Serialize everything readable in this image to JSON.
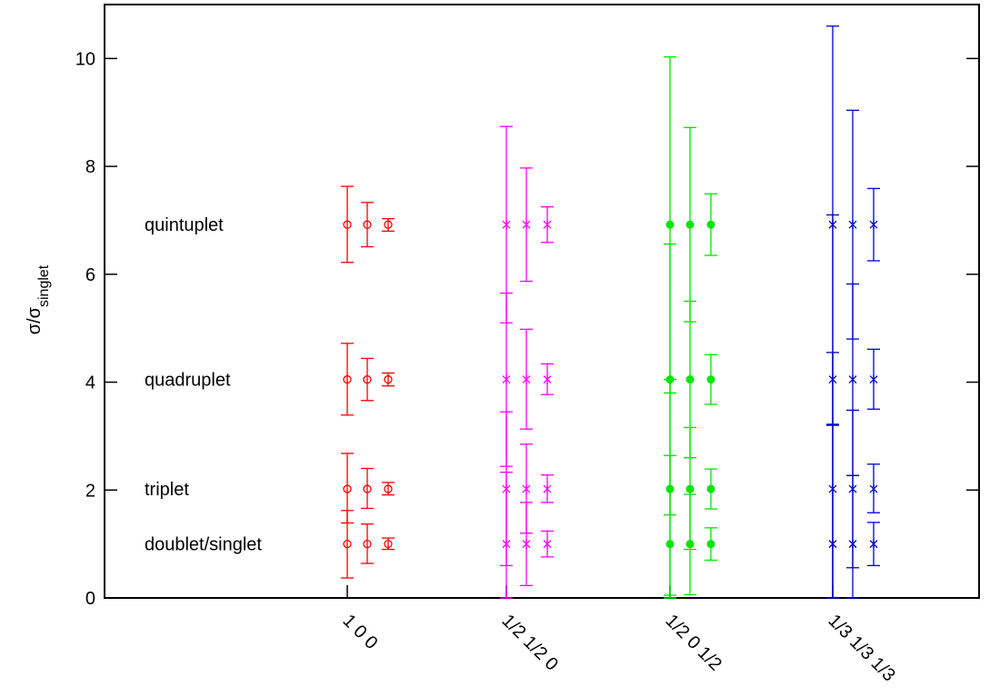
{
  "chart_data": {
    "type": "scatter",
    "title": "",
    "xlabel": "",
    "ylabel": "σ/σ",
    "ylabel_subscript": "singlet",
    "ylim": [
      0,
      11
    ],
    "y_ticks": [
      0,
      2,
      4,
      6,
      8,
      10
    ],
    "grid": false,
    "categories": [
      "1 0 0",
      "1/2 1/2 0",
      "1/2 0 1/2",
      "1/3 1/3 1/3"
    ],
    "row_labels": [
      {
        "text": "quintuplet",
        "y": 6.92
      },
      {
        "text": "quadruplet",
        "y": 4.05
      },
      {
        "text": "triplet",
        "y": 2.02
      },
      {
        "text": "doublet/singlet",
        "y": 1.0
      }
    ],
    "series": [
      {
        "category": "1 0 0",
        "color": "#ff0000",
        "marker": "circle",
        "columns": [
          [
            {
              "y": 6.92,
              "lo": 6.22,
              "hi": 7.63
            },
            {
              "y": 4.05,
              "lo": 3.39,
              "hi": 4.72
            },
            {
              "y": 2.02,
              "lo": 1.39,
              "hi": 2.68
            },
            {
              "y": 1.0,
              "lo": 0.37,
              "hi": 1.62
            }
          ],
          [
            {
              "y": 6.92,
              "lo": 6.51,
              "hi": 7.33
            },
            {
              "y": 4.05,
              "lo": 3.66,
              "hi": 4.44
            },
            {
              "y": 2.02,
              "lo": 1.66,
              "hi": 2.4
            },
            {
              "y": 1.0,
              "lo": 0.64,
              "hi": 1.37
            }
          ],
          [
            {
              "y": 6.92,
              "lo": 6.8,
              "hi": 7.03
            },
            {
              "y": 4.05,
              "lo": 3.93,
              "hi": 4.17
            },
            {
              "y": 2.02,
              "lo": 1.91,
              "hi": 2.14
            },
            {
              "y": 1.0,
              "lo": 0.9,
              "hi": 1.11
            }
          ]
        ]
      },
      {
        "category": "1/2 1/2 0",
        "color": "#ff00ff",
        "marker": "star",
        "columns": [
          [
            {
              "y": 6.92,
              "lo": 5.1,
              "hi": 8.74
            },
            {
              "y": 4.05,
              "lo": 2.44,
              "hi": 5.65
            },
            {
              "y": 2.02,
              "lo": 0.6,
              "hi": 3.45
            },
            {
              "y": 1.0,
              "lo": 0.0,
              "hi": 2.33
            }
          ],
          [
            {
              "y": 6.92,
              "lo": 5.87,
              "hi": 7.97
            },
            {
              "y": 4.05,
              "lo": 3.13,
              "hi": 4.98
            },
            {
              "y": 2.02,
              "lo": 1.2,
              "hi": 2.85
            },
            {
              "y": 1.0,
              "lo": 0.23,
              "hi": 1.77
            }
          ],
          [
            {
              "y": 6.92,
              "lo": 6.59,
              "hi": 7.25
            },
            {
              "y": 4.05,
              "lo": 3.77,
              "hi": 4.34
            },
            {
              "y": 2.02,
              "lo": 1.77,
              "hi": 2.28
            },
            {
              "y": 1.0,
              "lo": 0.76,
              "hi": 1.24
            }
          ]
        ]
      },
      {
        "category": "1/2 0 1/2",
        "color": "#00e600",
        "marker": "dot",
        "columns": [
          [
            {
              "y": 6.92,
              "lo": 3.8,
              "hi": 10.03
            },
            {
              "y": 4.05,
              "lo": 1.54,
              "hi": 6.56
            },
            {
              "y": 2.02,
              "lo": 0.0,
              "hi": 4.05
            },
            {
              "y": 1.0,
              "lo": 0.05,
              "hi": 2.64
            }
          ],
          [
            {
              "y": 6.92,
              "lo": 5.12,
              "hi": 8.72
            },
            {
              "y": 4.05,
              "lo": 2.6,
              "hi": 5.5
            },
            {
              "y": 2.02,
              "lo": 0.9,
              "hi": 3.16
            },
            {
              "y": 1.0,
              "lo": 0.06,
              "hi": 1.92
            }
          ],
          [
            {
              "y": 6.92,
              "lo": 6.35,
              "hi": 7.49
            },
            {
              "y": 4.05,
              "lo": 3.59,
              "hi": 4.51
            },
            {
              "y": 2.02,
              "lo": 1.65,
              "hi": 2.39
            },
            {
              "y": 1.0,
              "lo": 0.7,
              "hi": 1.3
            }
          ]
        ]
      },
      {
        "category": "1/3 1/3 1/3",
        "color": "#0000cc",
        "marker": "star",
        "columns": [
          [
            {
              "y": 6.92,
              "lo": 3.22,
              "hi": 10.6
            },
            {
              "y": 4.05,
              "lo": 0.0,
              "hi": 7.1
            },
            {
              "y": 2.02,
              "lo": 0.0,
              "hi": 4.55
            },
            {
              "y": 1.0,
              "lo": 0.0,
              "hi": 3.2
            }
          ],
          [
            {
              "y": 6.92,
              "lo": 4.8,
              "hi": 9.04
            },
            {
              "y": 4.05,
              "lo": 2.27,
              "hi": 5.82
            },
            {
              "y": 2.02,
              "lo": 0.56,
              "hi": 3.48
            },
            {
              "y": 1.0,
              "lo": 0.0,
              "hi": 2.27
            }
          ],
          [
            {
              "y": 6.92,
              "lo": 6.25,
              "hi": 7.59
            },
            {
              "y": 4.05,
              "lo": 3.5,
              "hi": 4.61
            },
            {
              "y": 2.02,
              "lo": 1.58,
              "hi": 2.48
            },
            {
              "y": 1.0,
              "lo": 0.6,
              "hi": 1.4
            }
          ]
        ]
      }
    ]
  }
}
